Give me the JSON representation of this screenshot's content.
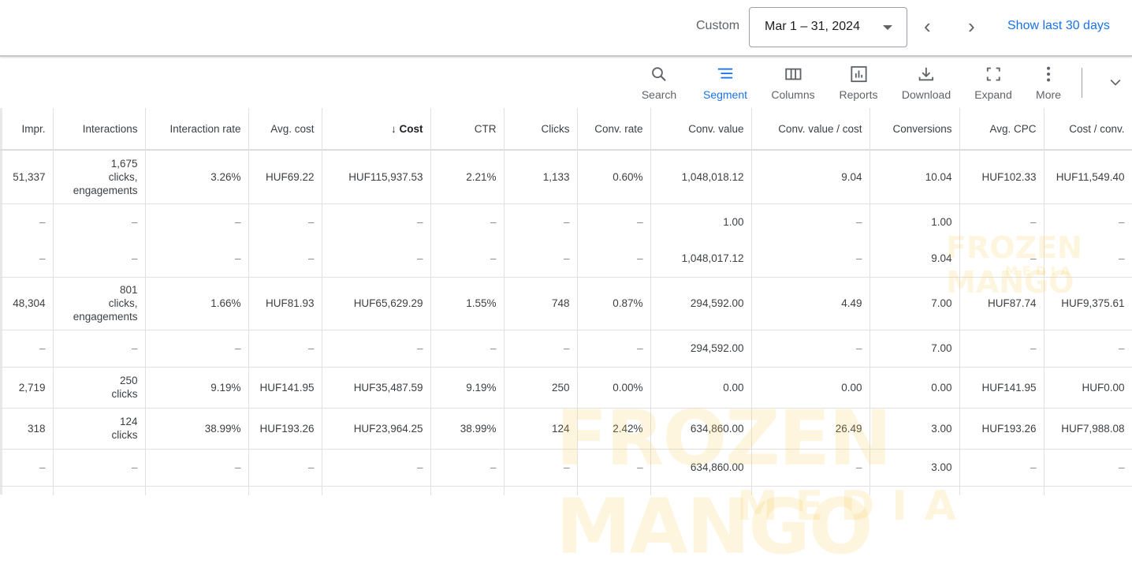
{
  "header": {
    "range_label": "Custom",
    "date_range": "Mar 1 – 31, 2024",
    "show_last_30": "Show last 30 days"
  },
  "toolbar": [
    {
      "label": "Search",
      "icon": "search-icon"
    },
    {
      "label": "Segment",
      "icon": "segment-icon",
      "active": true
    },
    {
      "label": "Columns",
      "icon": "columns-icon"
    },
    {
      "label": "Reports",
      "icon": "reports-icon"
    },
    {
      "label": "Download",
      "icon": "download-icon"
    },
    {
      "label": "Expand",
      "icon": "expand-icon"
    },
    {
      "label": "More",
      "icon": "more-vert-icon"
    }
  ],
  "columns": [
    "Impr.",
    "Interactions",
    "Interaction rate",
    "Avg. cost",
    "Cost",
    "CTR",
    "Clicks",
    "Conv. rate",
    "Conv. value",
    "Conv. value / cost",
    "Conversions",
    "Avg. CPC",
    "Cost / conv."
  ],
  "sort_column": "Cost",
  "rows": [
    [
      "51,337",
      "1,675 clicks, engagements",
      "3.26%",
      "HUF69.22",
      "HUF115,937.53",
      "2.21%",
      "1,133",
      "0.60%",
      "1,048,018.12",
      "9.04",
      "10.04",
      "HUF102.33",
      "HUF11,549.40"
    ],
    [
      "–",
      "–",
      "–",
      "–",
      "–",
      "–",
      "–",
      "–",
      "1.00",
      "–",
      "1.00",
      "–",
      "–"
    ],
    [
      "–",
      "–",
      "–",
      "–",
      "–",
      "–",
      "–",
      "–",
      "1,048,017.12",
      "–",
      "9.04",
      "–",
      "–"
    ],
    [
      "48,304",
      "801 clicks, engagements",
      "1.66%",
      "HUF81.93",
      "HUF65,629.29",
      "1.55%",
      "748",
      "0.87%",
      "294,592.00",
      "4.49",
      "7.00",
      "HUF87.74",
      "HUF9,375.61"
    ],
    [
      "–",
      "–",
      "–",
      "–",
      "–",
      "–",
      "–",
      "–",
      "294,592.00",
      "–",
      "7.00",
      "–",
      "–"
    ],
    [
      "2,719",
      "250 clicks",
      "9.19%",
      "HUF141.95",
      "HUF35,487.59",
      "9.19%",
      "250",
      "0.00%",
      "0.00",
      "0.00",
      "0.00",
      "HUF141.95",
      "HUF0.00"
    ],
    [
      "318",
      "124 clicks",
      "38.99%",
      "HUF193.26",
      "HUF23,964.25",
      "38.99%",
      "124",
      "2.42%",
      "634,860.00",
      "26.49",
      "3.00",
      "HUF193.26",
      "HUF7,988.08"
    ],
    [
      "–",
      "–",
      "–",
      "–",
      "–",
      "–",
      "–",
      "–",
      "634,860.00",
      "–",
      "3.00",
      "–",
      "–"
    ]
  ],
  "watermark": {
    "brand": "FROZEN MANGO",
    "sub": "MEDIA"
  },
  "colors": {
    "accent": "#1a73e8"
  }
}
